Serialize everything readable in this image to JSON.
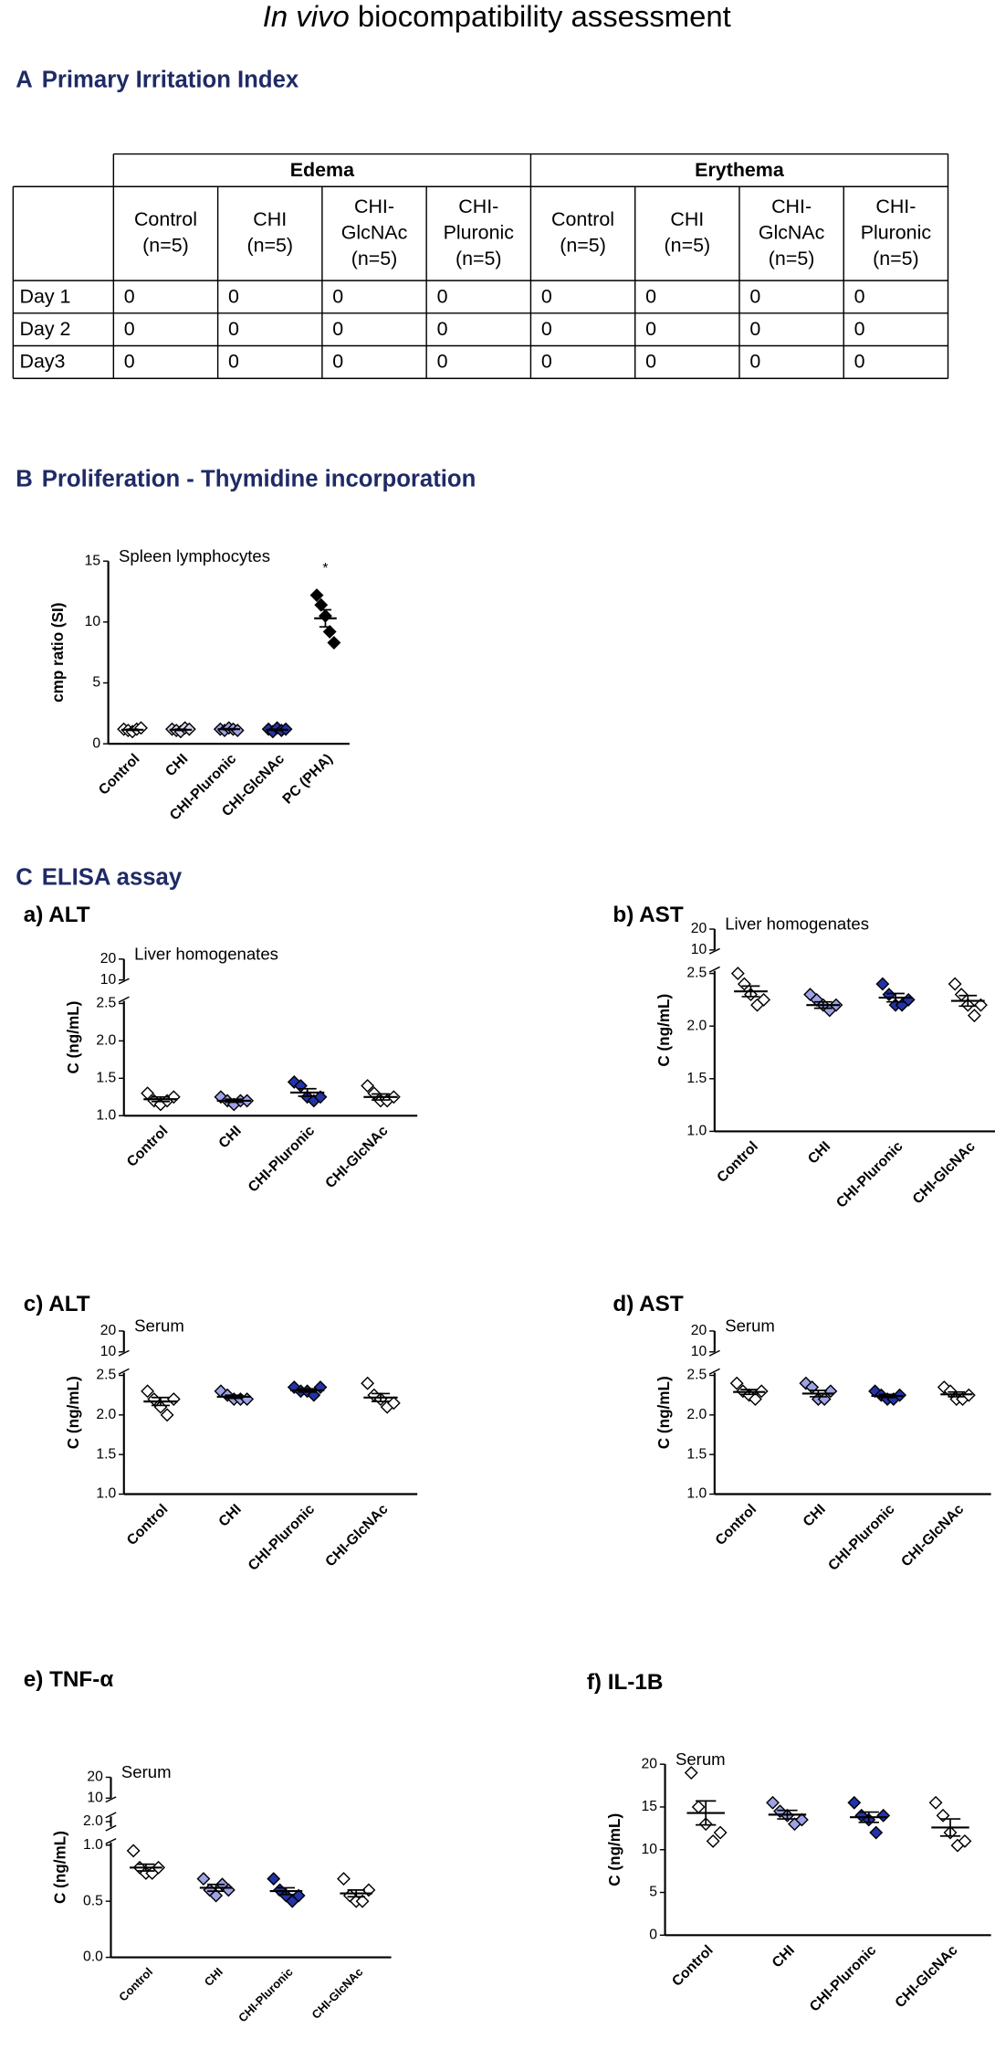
{
  "title_italic": "In vivo",
  "title_rest": "biocompatibility assessment",
  "section_a": {
    "letter": "A",
    "text": "Primary Irritation Index",
    "table": {
      "groups": [
        {
          "name": "Edema",
          "columns": [
            [
              "Control",
              "(n=5)"
            ],
            [
              "CHI",
              "(n=5)"
            ],
            [
              "CHI-",
              "GlcNAc",
              "(n=5)"
            ],
            [
              "CHI-",
              "Pluronic",
              "(n=5)"
            ]
          ]
        },
        {
          "name": "Erythema",
          "columns": [
            [
              "Control",
              "(n=5)"
            ],
            [
              "CHI",
              "(n=5)"
            ],
            [
              "CHI-",
              "GlcNAc",
              "(n=5)"
            ],
            [
              "CHI-",
              "Pluronic",
              "(n=5)"
            ]
          ]
        }
      ],
      "rows": [
        {
          "label": "Day 1",
          "cells": [
            0,
            0,
            0,
            0,
            0,
            0,
            0,
            0
          ]
        },
        {
          "label": "Day 2",
          "cells": [
            0,
            0,
            0,
            0,
            0,
            0,
            0,
            0
          ]
        },
        {
          "label": "Day3",
          "cells": [
            0,
            0,
            0,
            0,
            0,
            0,
            0,
            0
          ]
        }
      ]
    }
  },
  "section_b": {
    "letter": "B",
    "text": "Proliferation - Thymidine incorporation"
  },
  "section_c": {
    "letter": "C",
    "text": "ELISA assay"
  },
  "chart_data": [
    {
      "type": "dot",
      "annotation": "Spleen lymphocytes",
      "ylabel": "cmp ratio (SI)",
      "ylim": [
        0,
        15
      ],
      "yticks": [
        0,
        5,
        10,
        15
      ],
      "groups": [
        {
          "name": "Control",
          "color": "#ffffff",
          "values": [
            1.2,
            1.1,
            1.0,
            1.2,
            1.3
          ],
          "mean": 1.15,
          "sem": 0.05
        },
        {
          "name": "CHI",
          "color": "#d8d8ec",
          "values": [
            1.2,
            1.1,
            1.0,
            1.3,
            1.2
          ],
          "mean": 1.15,
          "sem": 0.05
        },
        {
          "name": "CHI-Pluronic",
          "color": "#9ea3e6",
          "values": [
            1.2,
            1.1,
            1.3,
            1.2,
            1.1
          ],
          "mean": 1.2,
          "sem": 0.04
        },
        {
          "name": "CHI-GlcNAc",
          "color": "#2233aa",
          "values": [
            1.2,
            1.0,
            1.3,
            1.1,
            1.2
          ],
          "mean": 1.15,
          "sem": 0.05
        },
        {
          "name": "PC (PHA)",
          "color": "#000000",
          "values": [
            12.2,
            11.4,
            10.5,
            9.2,
            8.3
          ],
          "mean": 10.3,
          "sem": 0.7,
          "label": "*"
        }
      ]
    },
    {
      "type": "dot",
      "panel": "a) ALT",
      "annotation": "Liver homogenates",
      "ylabel": "C (ng/mL)",
      "ysegments": [
        [
          1,
          2.5
        ],
        [
          10,
          20
        ]
      ],
      "yticks": [
        {
          "value": 1,
          "label": "1.0"
        },
        1.5,
        {
          "value": 2,
          "label": "2.0"
        },
        2.5,
        10,
        20
      ],
      "groups": [
        {
          "name": "Control",
          "color": "#ffffff",
          "values": [
            1.3,
            1.2,
            1.15,
            1.2,
            1.25
          ],
          "mean": 1.22,
          "sem": 0.03
        },
        {
          "name": "CHI",
          "color": "#9ea3e6",
          "values": [
            1.25,
            1.2,
            1.15,
            1.2,
            1.2
          ],
          "mean": 1.2,
          "sem": 0.02
        },
        {
          "name": "CHI-Pluronic",
          "color": "#2233aa",
          "values": [
            1.45,
            1.4,
            1.25,
            1.2,
            1.25
          ],
          "mean": 1.31,
          "sem": 0.05
        },
        {
          "name": "CHI-GlcNAc",
          "color": "#ffffff",
          "values": [
            1.4,
            1.3,
            1.2,
            1.2,
            1.25
          ],
          "mean": 1.25,
          "sem": 0.04
        }
      ]
    },
    {
      "type": "dot",
      "panel": "b) AST",
      "annotation": "Liver homogenates",
      "ylabel": "C (ng/mL)",
      "ysegments": [
        [
          1,
          2.5
        ],
        [
          10,
          20
        ]
      ],
      "yticks": [
        {
          "value": 1,
          "label": "1.0"
        },
        1.5,
        {
          "value": 2,
          "label": "2.0"
        },
        2.5,
        10,
        20
      ],
      "groups": [
        {
          "name": "Control",
          "color": "#ffffff",
          "values": [
            2.5,
            2.4,
            2.3,
            2.2,
            2.25
          ],
          "mean": 2.33,
          "sem": 0.05
        },
        {
          "name": "CHI",
          "color": "#9ea3e6",
          "values": [
            2.3,
            2.25,
            2.2,
            2.15,
            2.2
          ],
          "mean": 2.2,
          "sem": 0.03
        },
        {
          "name": "CHI-Pluronic",
          "color": "#2233aa",
          "values": [
            2.4,
            2.3,
            2.2,
            2.2,
            2.25
          ],
          "mean": 2.27,
          "sem": 0.04
        },
        {
          "name": "CHI-GlcNAc",
          "color": "#ffffff",
          "values": [
            2.4,
            2.3,
            2.2,
            2.1,
            2.2
          ],
          "mean": 2.24,
          "sem": 0.05
        }
      ]
    },
    {
      "type": "dot",
      "panel": "c) ALT",
      "annotation": "Serum",
      "ylabel": "C (ng/mL)",
      "ysegments": [
        [
          1,
          2.5
        ],
        [
          10,
          20
        ]
      ],
      "yticks": [
        {
          "value": 1,
          "label": "1.0"
        },
        1.5,
        {
          "value": 2,
          "label": "2.0"
        },
        2.5,
        10,
        20
      ],
      "groups": [
        {
          "name": "Control",
          "color": "#ffffff",
          "values": [
            2.3,
            2.2,
            2.1,
            2.0,
            2.2
          ],
          "mean": 2.17,
          "sem": 0.05
        },
        {
          "name": "CHI",
          "color": "#9ea3e6",
          "values": [
            2.3,
            2.25,
            2.2,
            2.2,
            2.2
          ],
          "mean": 2.23,
          "sem": 0.02
        },
        {
          "name": "CHI-Pluronic",
          "color": "#2233aa",
          "values": [
            2.35,
            2.3,
            2.3,
            2.25,
            2.35
          ],
          "mean": 2.31,
          "sem": 0.02
        },
        {
          "name": "CHI-GlcNAc",
          "color": "#ffffff",
          "values": [
            2.4,
            2.25,
            2.2,
            2.1,
            2.15
          ],
          "mean": 2.22,
          "sem": 0.05
        }
      ]
    },
    {
      "type": "dot",
      "panel": "d) AST",
      "annotation": "Serum",
      "ylabel": "C (ng/mL)",
      "ysegments": [
        [
          1,
          2.5
        ],
        [
          10,
          20
        ]
      ],
      "yticks": [
        {
          "value": 1,
          "label": "1.0"
        },
        1.5,
        {
          "value": 2,
          "label": "2.0"
        },
        2.5,
        10,
        20
      ],
      "groups": [
        {
          "name": "Control",
          "color": "#ffffff",
          "values": [
            2.4,
            2.3,
            2.25,
            2.2,
            2.3
          ],
          "mean": 2.29,
          "sem": 0.03
        },
        {
          "name": "CHI",
          "color": "#9ea3e6",
          "values": [
            2.4,
            2.35,
            2.2,
            2.2,
            2.3
          ],
          "mean": 2.27,
          "sem": 0.04
        },
        {
          "name": "CHI-Pluronic",
          "color": "#2233aa",
          "values": [
            2.3,
            2.25,
            2.2,
            2.2,
            2.25
          ],
          "mean": 2.24,
          "sem": 0.02
        },
        {
          "name": "CHI-GlcNAc",
          "color": "#ffffff",
          "values": [
            2.35,
            2.3,
            2.2,
            2.2,
            2.25
          ],
          "mean": 2.26,
          "sem": 0.03
        }
      ]
    },
    {
      "type": "dot",
      "panel": "e) TNF-α",
      "annotation": "Serum",
      "ylabel": "C (ng/mL)",
      "ysegments": [
        [
          0,
          1
        ],
        [
          2,
          2
        ],
        [
          10,
          20
        ]
      ],
      "yticks": [
        {
          "value": 0,
          "label": "0.0"
        },
        0.5,
        {
          "value": 1,
          "label": "1.0"
        },
        {
          "value": 2,
          "label": "2.0"
        },
        10,
        20
      ],
      "groups": [
        {
          "name": "Control",
          "color": "#ffffff",
          "values": [
            0.95,
            0.8,
            0.75,
            0.75,
            0.8
          ],
          "mean": 0.8,
          "sem": 0.03
        },
        {
          "name": "CHI",
          "color": "#9ea3e6",
          "values": [
            0.7,
            0.6,
            0.55,
            0.65,
            0.6
          ],
          "mean": 0.62,
          "sem": 0.03
        },
        {
          "name": "CHI-Pluronic",
          "color": "#2233aa",
          "values": [
            0.7,
            0.6,
            0.55,
            0.5,
            0.55
          ],
          "mean": 0.59,
          "sem": 0.03
        },
        {
          "name": "CHI-GlcNAc",
          "color": "#ffffff",
          "values": [
            0.7,
            0.55,
            0.5,
            0.5,
            0.6
          ],
          "mean": 0.57,
          "sem": 0.03
        }
      ]
    },
    {
      "type": "dot",
      "panel": "f) IL-1B",
      "annotation": "Serum",
      "ylabel": "C (ng/mL)",
      "ylim": [
        0,
        20
      ],
      "yticks": [
        0,
        5,
        10,
        15,
        20
      ],
      "groups": [
        {
          "name": "Control",
          "color": "#ffffff",
          "values": [
            19,
            15,
            13,
            11,
            12
          ],
          "mean": 14.3,
          "sem": 1.4
        },
        {
          "name": "CHI",
          "color": "#9ea3e6",
          "values": [
            15.5,
            14.5,
            14,
            13,
            13.5
          ],
          "mean": 14.1,
          "sem": 0.5
        },
        {
          "name": "CHI-Pluronic",
          "color": "#2233aa",
          "values": [
            15.5,
            14,
            13.5,
            12,
            14
          ],
          "mean": 13.8,
          "sem": 0.6
        },
        {
          "name": "CHI-GlcNAc",
          "color": "#ffffff",
          "values": [
            15.5,
            14,
            12,
            10.5,
            11
          ],
          "mean": 12.6,
          "sem": 1.0
        }
      ]
    }
  ]
}
